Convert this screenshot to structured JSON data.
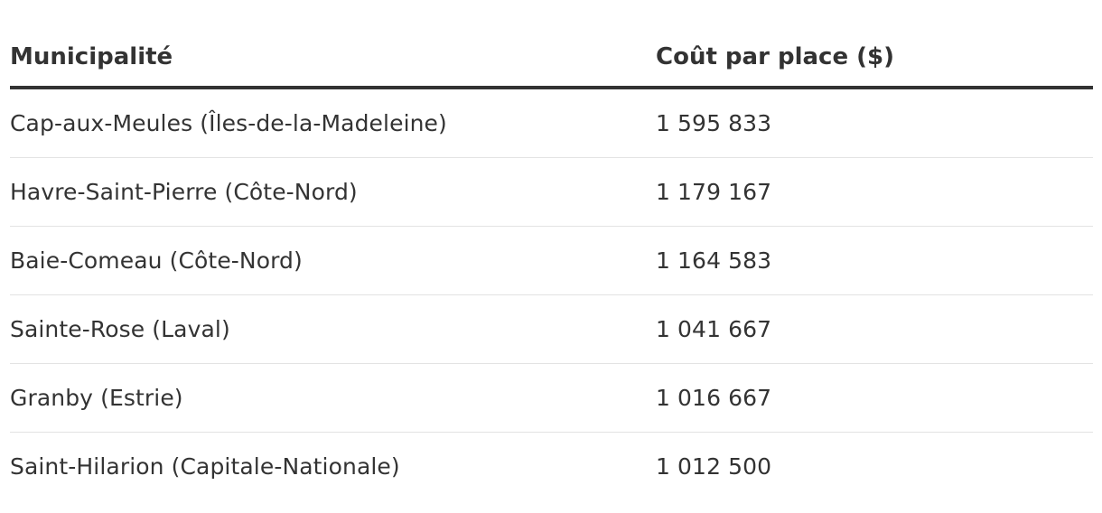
{
  "table": {
    "headers": {
      "municipality": "Municipalité",
      "cost": "Coût par place ($)"
    },
    "rows": [
      {
        "municipality": "Cap-aux-Meules (Îles-de-la-Madeleine)",
        "cost": "1 595 833"
      },
      {
        "municipality": "Havre-Saint-Pierre (Côte-Nord)",
        "cost": "1 179 167"
      },
      {
        "municipality": "Baie-Comeau (Côte-Nord)",
        "cost": "1 164 583"
      },
      {
        "municipality": "Sainte-Rose (Laval)",
        "cost": "1 041 667"
      },
      {
        "municipality": "Granby (Estrie)",
        "cost": "1 016 667"
      },
      {
        "municipality": "Saint-Hilarion (Capitale-Nationale)",
        "cost": "1 012 500"
      }
    ]
  },
  "colors": {
    "text": "#333333",
    "header_rule": "#333333",
    "row_divider": "#e3e3e3",
    "background": "#ffffff"
  }
}
